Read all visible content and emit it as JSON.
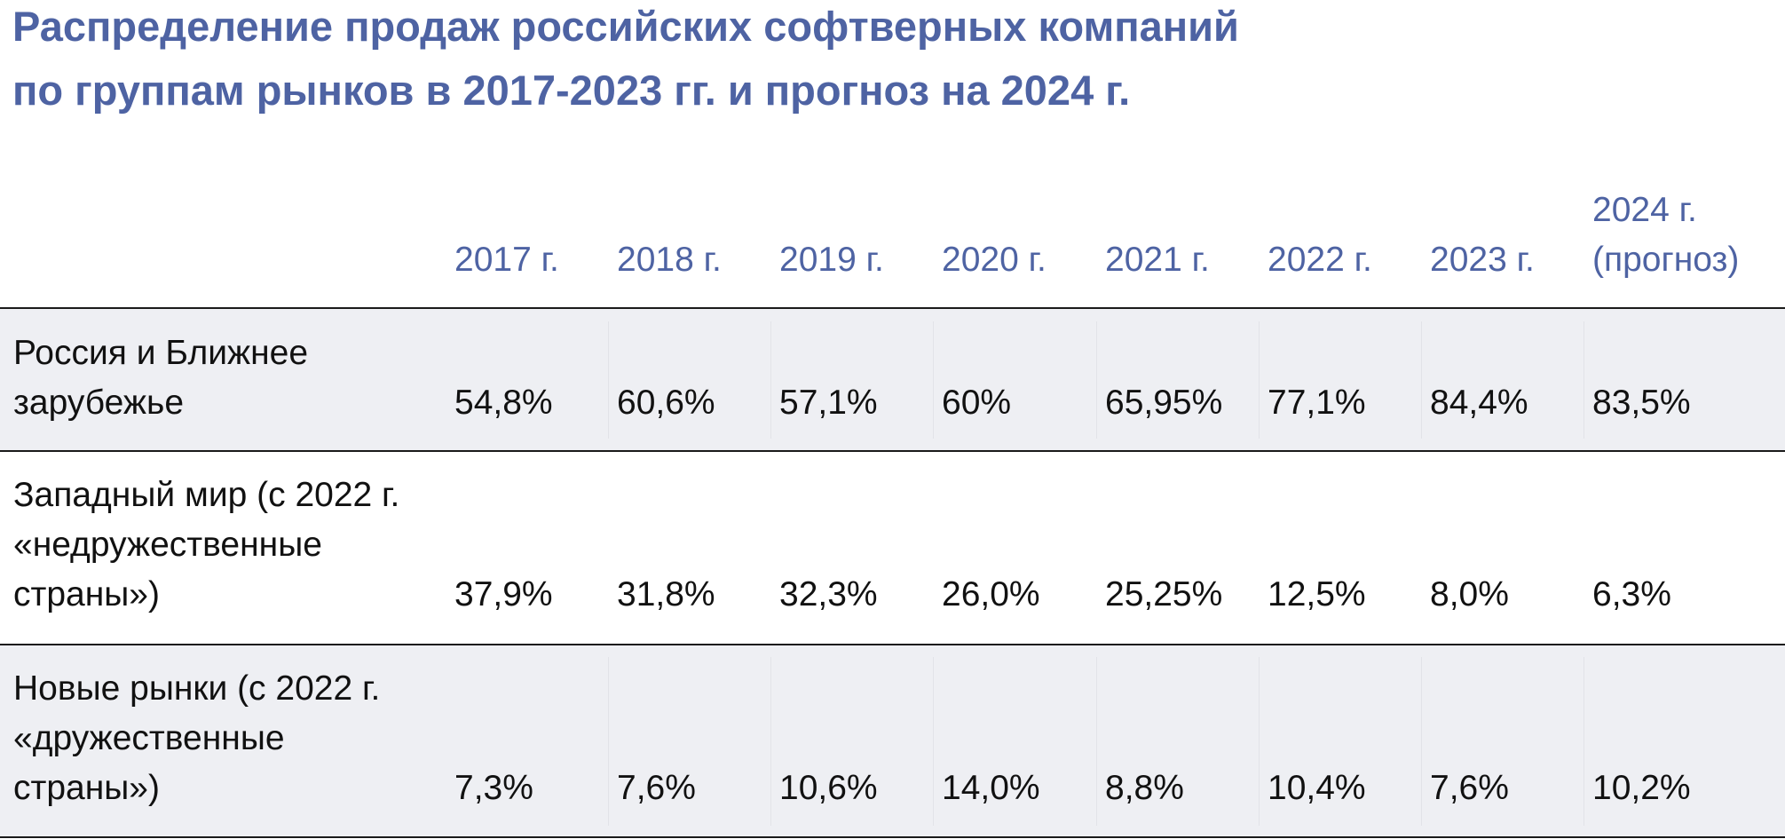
{
  "title": {
    "line1": "Распределение продаж российских софтверных компаний",
    "line2": "по группам рынков в 2017-2023 гг. и прогноз на 2024 г."
  },
  "chart_data": {
    "type": "table",
    "title": "Распределение продаж российских софтверных компаний по группам рынков в 2017-2023 гг. и прогноз на 2024 г.",
    "columns": [
      "2017 г.",
      "2018 г.",
      "2019 г.",
      "2020 г.",
      "2021 г.",
      "2022 г.",
      "2023 г.",
      "2024 г.\n(прогноз)"
    ],
    "rows": [
      {
        "label": "Россия и Ближнее\nзарубежье",
        "values": [
          "54,8%",
          "60,6%",
          "57,1%",
          "60%",
          "65,95%",
          "77,1%",
          "84,4%",
          "83,5%"
        ]
      },
      {
        "label": "Западный мир (с 2022 г.\n«недружественные\nстраны»)",
        "values": [
          "37,9%",
          "31,8%",
          "32,3%",
          "26,0%",
          "25,25%",
          "12,5%",
          "8,0%",
          "6,3%"
        ]
      },
      {
        "label": "Новые рынки (с 2022 г.\n«дружественные\nстраны»)",
        "values": [
          "7,3%",
          "7,6%",
          "10,6%",
          "14,0%",
          "8,8%",
          "10,4%",
          "7,6%",
          "10,2%"
        ]
      }
    ]
  },
  "colors": {
    "header_text": "#4e63a3",
    "body_text": "#111111",
    "shaded_row": "#eeeff3",
    "rule": "#1a1a1a"
  }
}
